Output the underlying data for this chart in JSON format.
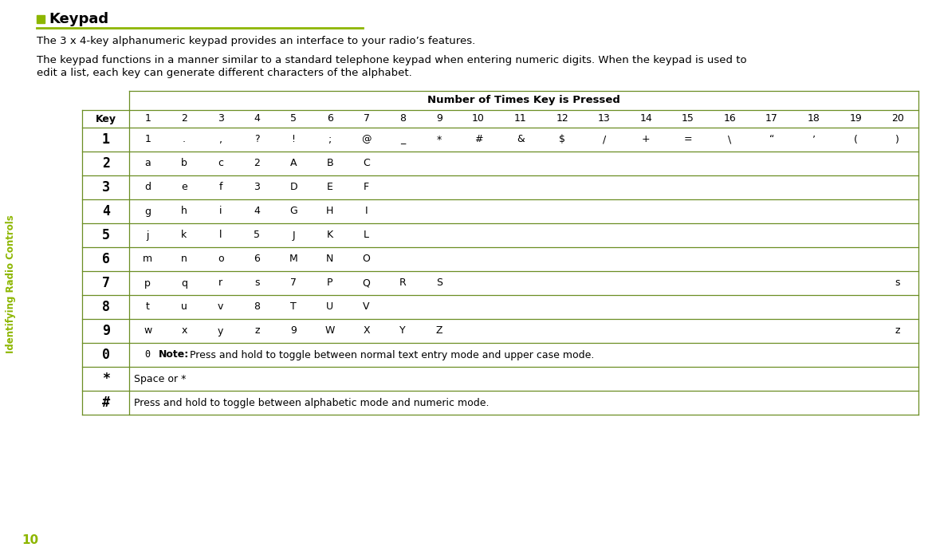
{
  "title": "Keypad",
  "green_color": "#6B8E23",
  "accent_color": "#8DB600",
  "bg_color": "#FFFFFF",
  "sidebar_text": "Identifying Radio Controls",
  "page_number": "10",
  "para1": "The 3 x 4-key alphanumeric keypad provides an interface to your radio’s features.",
  "para2a": "The keypad functions in a manner similar to a standard telephone keypad when entering numeric digits. When the keypad is used to",
  "para2b": "edit a list, each key can generate different characters of the alphabet.",
  "table_header_col": "Number of Times Key is Pressed",
  "col_header": [
    "Key",
    "1",
    "2",
    "3",
    "4",
    "5",
    "6",
    "7",
    "8",
    "9",
    "10",
    "11",
    "12",
    "13",
    "14",
    "15",
    "16",
    "17",
    "18",
    "19",
    "20"
  ],
  "rows": [
    {
      "key": "1",
      "cells": [
        "1",
        ".",
        ",",
        "?",
        "!",
        ";",
        "@",
        "_",
        "*",
        "#",
        "&",
        "$",
        "/",
        "+",
        "=",
        "\\",
        "“",
        "’",
        "(",
        ")"
      ],
      "type": "normal"
    },
    {
      "key": "2",
      "cells": [
        "a",
        "b",
        "c",
        "2",
        "A",
        "B",
        "C",
        "",
        "",
        "",
        "",
        "",
        "",
        "",
        "",
        "",
        "",
        "",
        "",
        ""
      ],
      "type": "normal"
    },
    {
      "key": "3",
      "cells": [
        "d",
        "e",
        "f",
        "3",
        "D",
        "E",
        "F",
        "",
        "",
        "",
        "",
        "",
        "",
        "",
        "",
        "",
        "",
        "",
        "",
        ""
      ],
      "type": "normal"
    },
    {
      "key": "4",
      "cells": [
        "g",
        "h",
        "i",
        "4",
        "G",
        "H",
        "I",
        "",
        "",
        "",
        "",
        "",
        "",
        "",
        "",
        "",
        "",
        "",
        "",
        ""
      ],
      "type": "normal"
    },
    {
      "key": "5",
      "cells": [
        "j",
        "k",
        "l",
        "5",
        "J",
        "K",
        "L",
        "",
        "",
        "",
        "",
        "",
        "",
        "",
        "",
        "",
        "",
        "",
        "",
        ""
      ],
      "type": "normal"
    },
    {
      "key": "6",
      "cells": [
        "m",
        "n",
        "o",
        "6",
        "M",
        "N",
        "O",
        "",
        "",
        "",
        "",
        "",
        "",
        "",
        "",
        "",
        "",
        "",
        "",
        ""
      ],
      "type": "normal"
    },
    {
      "key": "7",
      "cells": [
        "p",
        "q",
        "r",
        "s",
        "7",
        "P",
        "Q",
        "R",
        "S",
        "",
        "",
        "",
        "",
        "",
        "",
        "",
        "",
        "",
        "",
        "s"
      ],
      "type": "normal"
    },
    {
      "key": "8",
      "cells": [
        "t",
        "u",
        "v",
        "8",
        "T",
        "U",
        "V",
        "",
        "",
        "",
        "",
        "",
        "",
        "",
        "",
        "",
        "",
        "",
        "",
        ""
      ],
      "type": "normal"
    },
    {
      "key": "9",
      "cells": [
        "w",
        "x",
        "y",
        "z",
        "9",
        "W",
        "X",
        "Y",
        "Z",
        "",
        "",
        "",
        "",
        "",
        "",
        "",
        "",
        "",
        "",
        "z"
      ],
      "type": "normal"
    },
    {
      "key": "0",
      "cells": [
        "0",
        "",
        "",
        "",
        "",
        "",
        "",
        "",
        "",
        "",
        "",
        "",
        "",
        "",
        "",
        "",
        "",
        "",
        "",
        ""
      ],
      "type": "note",
      "note_bold": "Note:",
      "note_rest": "  Press and hold to toggle between normal text entry mode and upper case mode."
    },
    {
      "key": "*",
      "cells": [],
      "type": "span",
      "span_text": "Space or *"
    },
    {
      "key": "#",
      "cells": [],
      "type": "span",
      "span_text": "Press and hold to toggle between alphabetic mode and numeric mode."
    }
  ]
}
